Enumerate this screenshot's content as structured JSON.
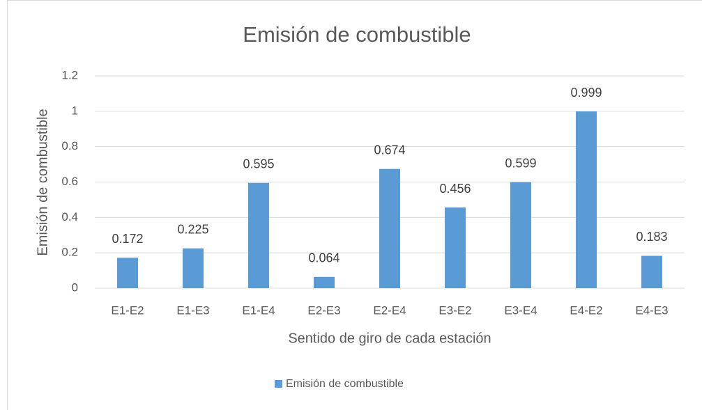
{
  "chart_data": {
    "type": "bar",
    "title": "Emisión de combustible",
    "x_label": "Sentido de giro de cada estación",
    "y_label": "Emisión de combustible",
    "categories": [
      "E1-E2",
      "E1-E3",
      "E1-E4",
      "E2-E3",
      "E2-E4",
      "E3-E2",
      "E3-E4",
      "E4-E2",
      "E4-E3"
    ],
    "series": [
      {
        "name": "Emisión de combustible",
        "color": "#5b9bd5",
        "values": [
          0.172,
          0.225,
          0.595,
          0.064,
          0.674,
          0.456,
          0.599,
          0.999,
          0.183
        ]
      }
    ],
    "ylim": [
      0,
      1.2
    ],
    "yticks": [
      0,
      0.2,
      0.4,
      0.6,
      0.8,
      1,
      1.2
    ],
    "grid": true,
    "legend": "bottom"
  }
}
